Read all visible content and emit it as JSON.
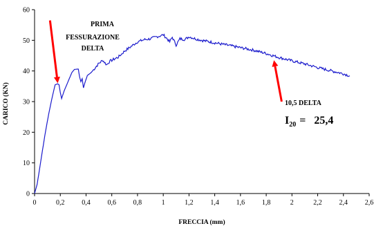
{
  "chart_data": {
    "type": "line",
    "title": "",
    "xlabel": "FRECCIA (mm)",
    "ylabel": "CARICO (KN)",
    "xlim": [
      0,
      2.6
    ],
    "ylim": [
      0,
      60
    ],
    "xticks": [
      "0",
      "0,2",
      "0,4",
      "0,6",
      "0,8",
      "1",
      "1,2",
      "1,4",
      "1,6",
      "1,8",
      "2",
      "2,2",
      "2,4",
      "2,6"
    ],
    "yticks": [
      "0",
      "10",
      "20",
      "30",
      "40",
      "50",
      "60"
    ],
    "grid": false,
    "legend": "none",
    "series": [
      {
        "color": "#1a1acc",
        "x": [
          0,
          0.02,
          0.05,
          0.08,
          0.11,
          0.14,
          0.16,
          0.18,
          0.19,
          0.2,
          0.21,
          0.23,
          0.26,
          0.29,
          0.31,
          0.33,
          0.34,
          0.35,
          0.36,
          0.37,
          0.38,
          0.39,
          0.41,
          0.44,
          0.47,
          0.5,
          0.53,
          0.56,
          0.58,
          0.6,
          0.65,
          0.7,
          0.75,
          0.8,
          0.85,
          0.9,
          0.95,
          0.98,
          1.0,
          1.02,
          1.05,
          1.07,
          1.1,
          1.13,
          1.17,
          1.2,
          1.25,
          1.3,
          1.4,
          1.5,
          1.6,
          1.7,
          1.8,
          1.9,
          2.0,
          2.1,
          2.2,
          2.3,
          2.4,
          2.45
        ],
        "y": [
          0,
          3,
          11,
          19,
          26,
          32,
          35.5,
          35.8,
          35.5,
          33,
          31,
          33.5,
          36.5,
          39.5,
          40.5,
          40.6,
          40.6,
          38,
          36.5,
          37.5,
          34.5,
          36,
          38.5,
          39.5,
          41,
          42.5,
          43.5,
          42,
          43,
          43.5,
          44.5,
          46.5,
          48,
          49.5,
          50.2,
          50.5,
          51.2,
          51.5,
          51.8,
          51,
          49.5,
          51,
          48.5,
          50.5,
          50.3,
          51.2,
          50.5,
          50,
          49.2,
          48.4,
          47.6,
          46.8,
          45.7,
          44.4,
          43.3,
          42.3,
          41.1,
          40.1,
          39.1,
          38.4
        ]
      }
    ],
    "annotations": [
      {
        "lines": [
          "PRIMA",
          "FESSURAZIONE",
          "DELTA"
        ],
        "arrow_from": [
          0.12,
          56.5
        ],
        "arrow_to": [
          0.18,
          36
        ]
      },
      {
        "line": "10,5 DELTA",
        "arrow_from": [
          1.92,
          30
        ],
        "arrow_to": [
          1.86,
          43.5
        ]
      }
    ],
    "formula": {
      "base": "I",
      "subscript": "20",
      "rest": "=   25,4"
    }
  }
}
